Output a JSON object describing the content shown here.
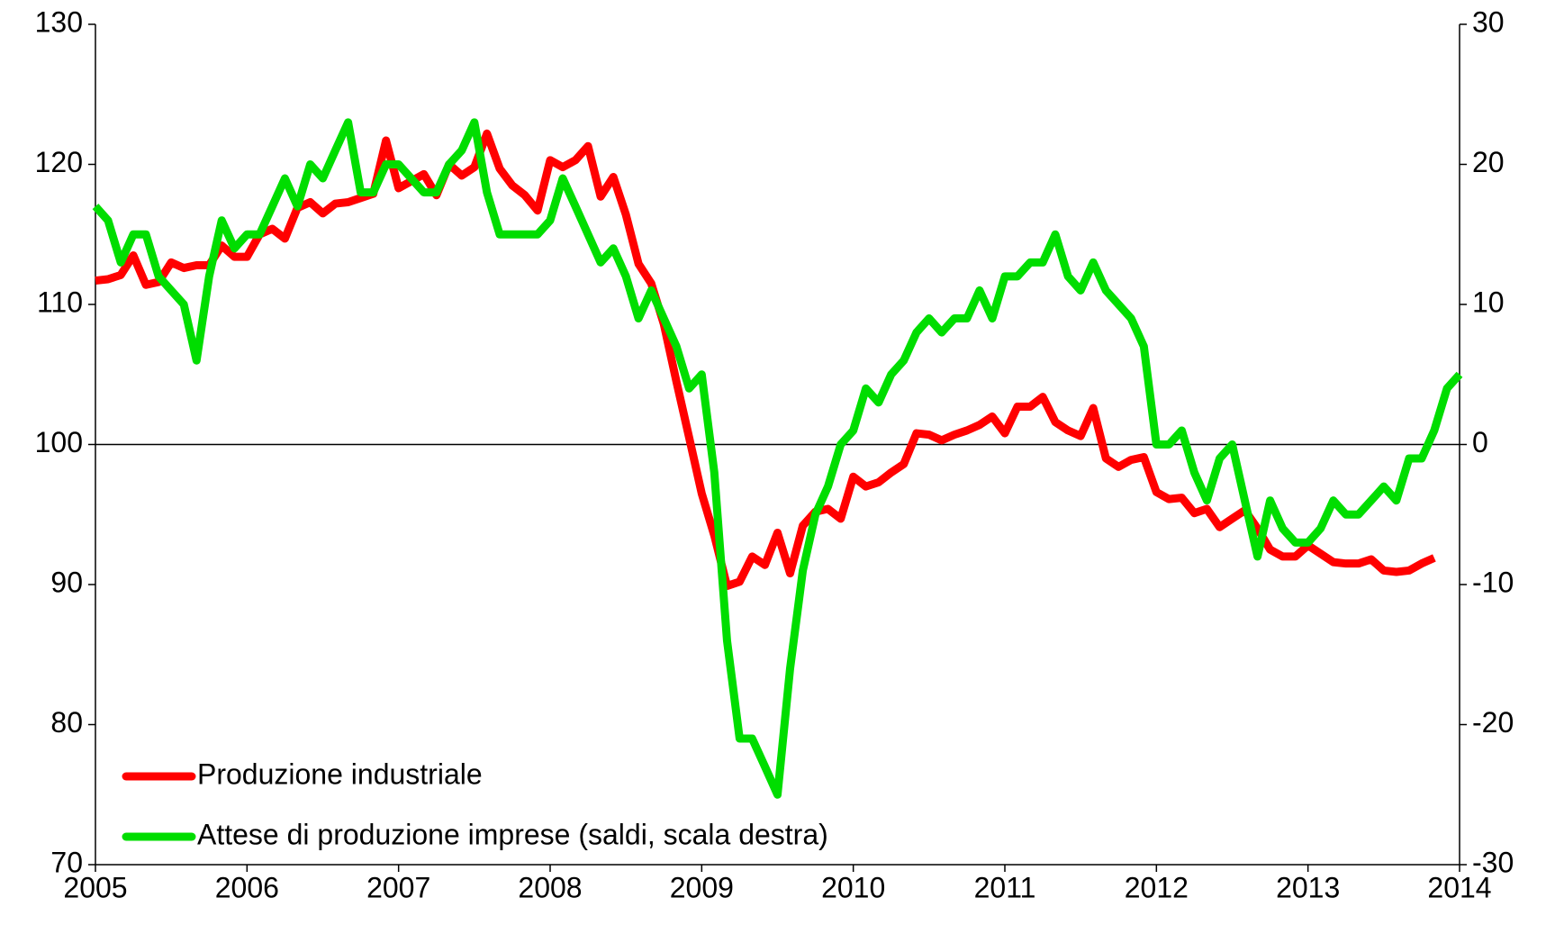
{
  "chart_data": {
    "type": "line",
    "x": [
      2005,
      2005.083,
      2005.167,
      2005.25,
      2005.333,
      2005.417,
      2005.5,
      2005.583,
      2005.667,
      2005.75,
      2005.833,
      2005.917,
      2006,
      2006.083,
      2006.167,
      2006.25,
      2006.333,
      2006.417,
      2006.5,
      2006.583,
      2006.667,
      2006.75,
      2006.833,
      2006.917,
      2007,
      2007.083,
      2007.167,
      2007.25,
      2007.333,
      2007.417,
      2007.5,
      2007.583,
      2007.667,
      2007.75,
      2007.833,
      2007.917,
      2008,
      2008.083,
      2008.167,
      2008.25,
      2008.333,
      2008.417,
      2008.5,
      2008.583,
      2008.667,
      2008.75,
      2008.833,
      2008.917,
      2009,
      2009.083,
      2009.167,
      2009.25,
      2009.333,
      2009.417,
      2009.5,
      2009.583,
      2009.667,
      2009.75,
      2009.833,
      2009.917,
      2010,
      2010.083,
      2010.167,
      2010.25,
      2010.333,
      2010.417,
      2010.5,
      2010.583,
      2010.667,
      2010.75,
      2010.833,
      2010.917,
      2011,
      2011.083,
      2011.167,
      2011.25,
      2011.333,
      2011.417,
      2011.5,
      2011.583,
      2011.667,
      2011.75,
      2011.833,
      2011.917,
      2012,
      2012.083,
      2012.167,
      2012.25,
      2012.333,
      2012.417,
      2012.5,
      2012.583,
      2012.667,
      2012.75,
      2012.833,
      2012.917,
      2013,
      2013.083,
      2013.167,
      2013.25,
      2013.333,
      2013.417,
      2013.5,
      2013.583,
      2013.667,
      2013.75,
      2013.833,
      2013.917,
      2014
    ],
    "series": [
      {
        "name": "Produzione industriale",
        "color": "#ff0000",
        "axis": "y",
        "values": [
          111.7,
          111.8,
          112.1,
          113.5,
          111.4,
          111.6,
          113.0,
          112.6,
          112.8,
          112.8,
          114.2,
          113.4,
          113.4,
          115.0,
          115.4,
          114.7,
          116.9,
          117.3,
          116.5,
          117.2,
          117.3,
          117.6,
          117.9,
          121.7,
          118.3,
          118.8,
          119.3,
          117.8,
          120.0,
          119.2,
          119.8,
          122.2,
          119.7,
          118.5,
          117.8,
          116.7,
          120.3,
          119.8,
          120.3,
          121.3,
          117.7,
          119.1,
          116.4,
          112.9,
          111.5,
          108.6,
          104.5,
          100.5,
          96.5,
          93.5,
          89.9,
          90.2,
          92.0,
          91.4,
          93.7,
          90.8,
          94.2,
          95.2,
          95.4,
          94.7,
          97.7,
          97.0,
          97.3,
          98.0,
          98.6,
          100.8,
          100.7,
          100.3,
          100.7,
          101.0,
          101.4,
          102.0,
          100.8,
          102.7,
          102.7,
          103.4,
          101.6,
          101.0,
          100.6,
          102.6,
          99.0,
          98.4,
          98.9,
          99.1,
          96.6,
          96.1,
          96.2,
          95.1,
          95.4,
          94.1,
          94.7,
          95.3,
          94.0,
          92.5,
          92.0,
          92.0,
          92.8,
          92.2,
          91.6,
          91.5,
          91.5,
          91.8,
          91.0,
          90.9,
          91.0,
          91.5,
          91.9,
          null,
          null
        ]
      },
      {
        "name": "Attese di produzione imprese (saldi, scala destra)",
        "color": "#00dd00",
        "axis": "y2",
        "values": [
          17,
          16,
          13,
          15,
          15,
          12,
          11,
          10,
          6,
          12,
          16,
          14,
          15,
          15,
          17,
          19,
          17,
          20,
          19,
          21,
          23,
          18,
          18,
          20,
          20,
          19,
          18,
          18,
          20,
          21,
          23,
          18,
          15,
          15,
          15,
          15,
          16,
          19,
          17,
          15,
          13,
          14,
          12,
          9,
          11,
          9,
          7,
          4,
          5,
          -2,
          -14,
          -21,
          -21,
          -23,
          -25,
          -16,
          -9,
          -5,
          -3,
          0,
          1,
          4,
          3,
          5,
          6,
          8,
          9,
          8,
          9,
          9,
          11,
          9,
          12,
          12,
          13,
          13,
          15,
          12,
          11,
          13,
          11,
          10,
          9,
          7,
          0,
          0,
          1,
          -2,
          -4,
          -1,
          0,
          -4,
          -8,
          -4,
          -6,
          -7,
          -7,
          -6,
          -4,
          -5,
          -5,
          -4,
          -3,
          -4,
          -1,
          -1,
          1,
          4,
          5
        ]
      }
    ],
    "xlim": [
      2005,
      2014
    ],
    "xticks": [
      2005,
      2006,
      2007,
      2008,
      2009,
      2010,
      2011,
      2012,
      2013,
      2014
    ],
    "ylim": [
      70,
      130
    ],
    "yticks": [
      70,
      80,
      90,
      100,
      110,
      120,
      130
    ],
    "y2lim": [
      -30,
      30
    ],
    "y2ticks": [
      -30,
      -20,
      -10,
      0,
      10,
      20,
      30
    ],
    "hline": 100,
    "grid": false,
    "legend": "lower left"
  }
}
